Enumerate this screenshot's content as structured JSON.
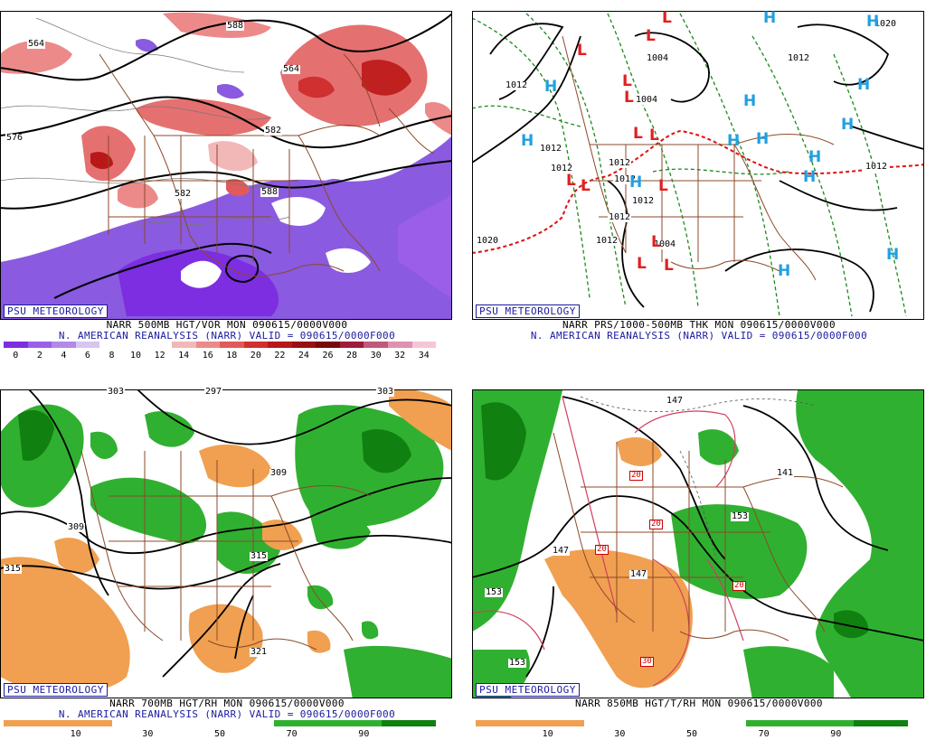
{
  "common": {
    "brand": "PSU METEOROLOGY",
    "subtitle": "N. AMERICAN REANALYSIS (NARR) VALID = 090615/0000F000"
  },
  "panels": {
    "tl": {
      "title": "NARR 500MB HGT/VOR MON 090615/0000V000",
      "colorbar": {
        "colors": [
          "#7d2ee0",
          "#9a5ee8",
          "#b18ae8",
          "#d6c6f0",
          "#ffffff",
          "#ffffff",
          "#ffffff",
          "#f2b8b8",
          "#ec8a8a",
          "#e05a5a",
          "#d03030",
          "#b81818",
          "#981010",
          "#7a0808",
          "#a01a3a",
          "#c05a7a",
          "#e090b0",
          "#f6c6d8"
        ],
        "labels": [
          "0",
          "2",
          "4",
          "6",
          "8",
          "10",
          "12",
          "14",
          "16",
          "18",
          "20",
          "22",
          "24",
          "26",
          "28",
          "30",
          "32",
          "34"
        ]
      },
      "contour_labels": [
        "564",
        "576",
        "582",
        "564",
        "582",
        "588",
        "588"
      ]
    },
    "tr": {
      "title": "NARR PRS/1000-500MB THK MON 090615/0000V000",
      "contour_labels": [
        "1012",
        "1004",
        "1012",
        "1004",
        "1012",
        "1012",
        "1012",
        "1012",
        "1012",
        "1004",
        "1012",
        "1012",
        "1020",
        "1020",
        "1012"
      ],
      "highs": [
        "H",
        "H",
        "H",
        "H",
        "H",
        "H",
        "H",
        "H",
        "H",
        "H",
        "H",
        "H",
        "H",
        "H"
      ],
      "lows": [
        "L",
        "L",
        "L",
        "L",
        "L",
        "L",
        "L",
        "L",
        "L",
        "L",
        "L",
        "L",
        "L"
      ]
    },
    "bl": {
      "title": "NARR 700MB HGT/RH MON 090615/0000V000",
      "colorbar": {
        "colors": [
          "#f0a050",
          "#f0a050",
          "#ffffff",
          "#ffffff",
          "#ffffff",
          "#30b030",
          "#30b030",
          "#108010"
        ],
        "labels": [
          "10",
          "30",
          "50",
          "70",
          "90"
        ]
      },
      "contour_labels": [
        "303",
        "297",
        "303",
        "309",
        "309",
        "315",
        "315",
        "321"
      ]
    },
    "br": {
      "title": "NARR 850MB HGT/T/RH MON 090615/0000V000",
      "colorbar": {
        "colors": [
          "#f0a050",
          "#f0a050",
          "#ffffff",
          "#ffffff",
          "#ffffff",
          "#30b030",
          "#30b030",
          "#108010"
        ],
        "labels": [
          "10",
          "30",
          "50",
          "70",
          "90"
        ]
      },
      "contour_labels": [
        "147",
        "141",
        "153",
        "147",
        "153",
        "147",
        "153"
      ],
      "temp_labels": [
        "20",
        "20",
        "20",
        "20",
        "30"
      ]
    }
  }
}
